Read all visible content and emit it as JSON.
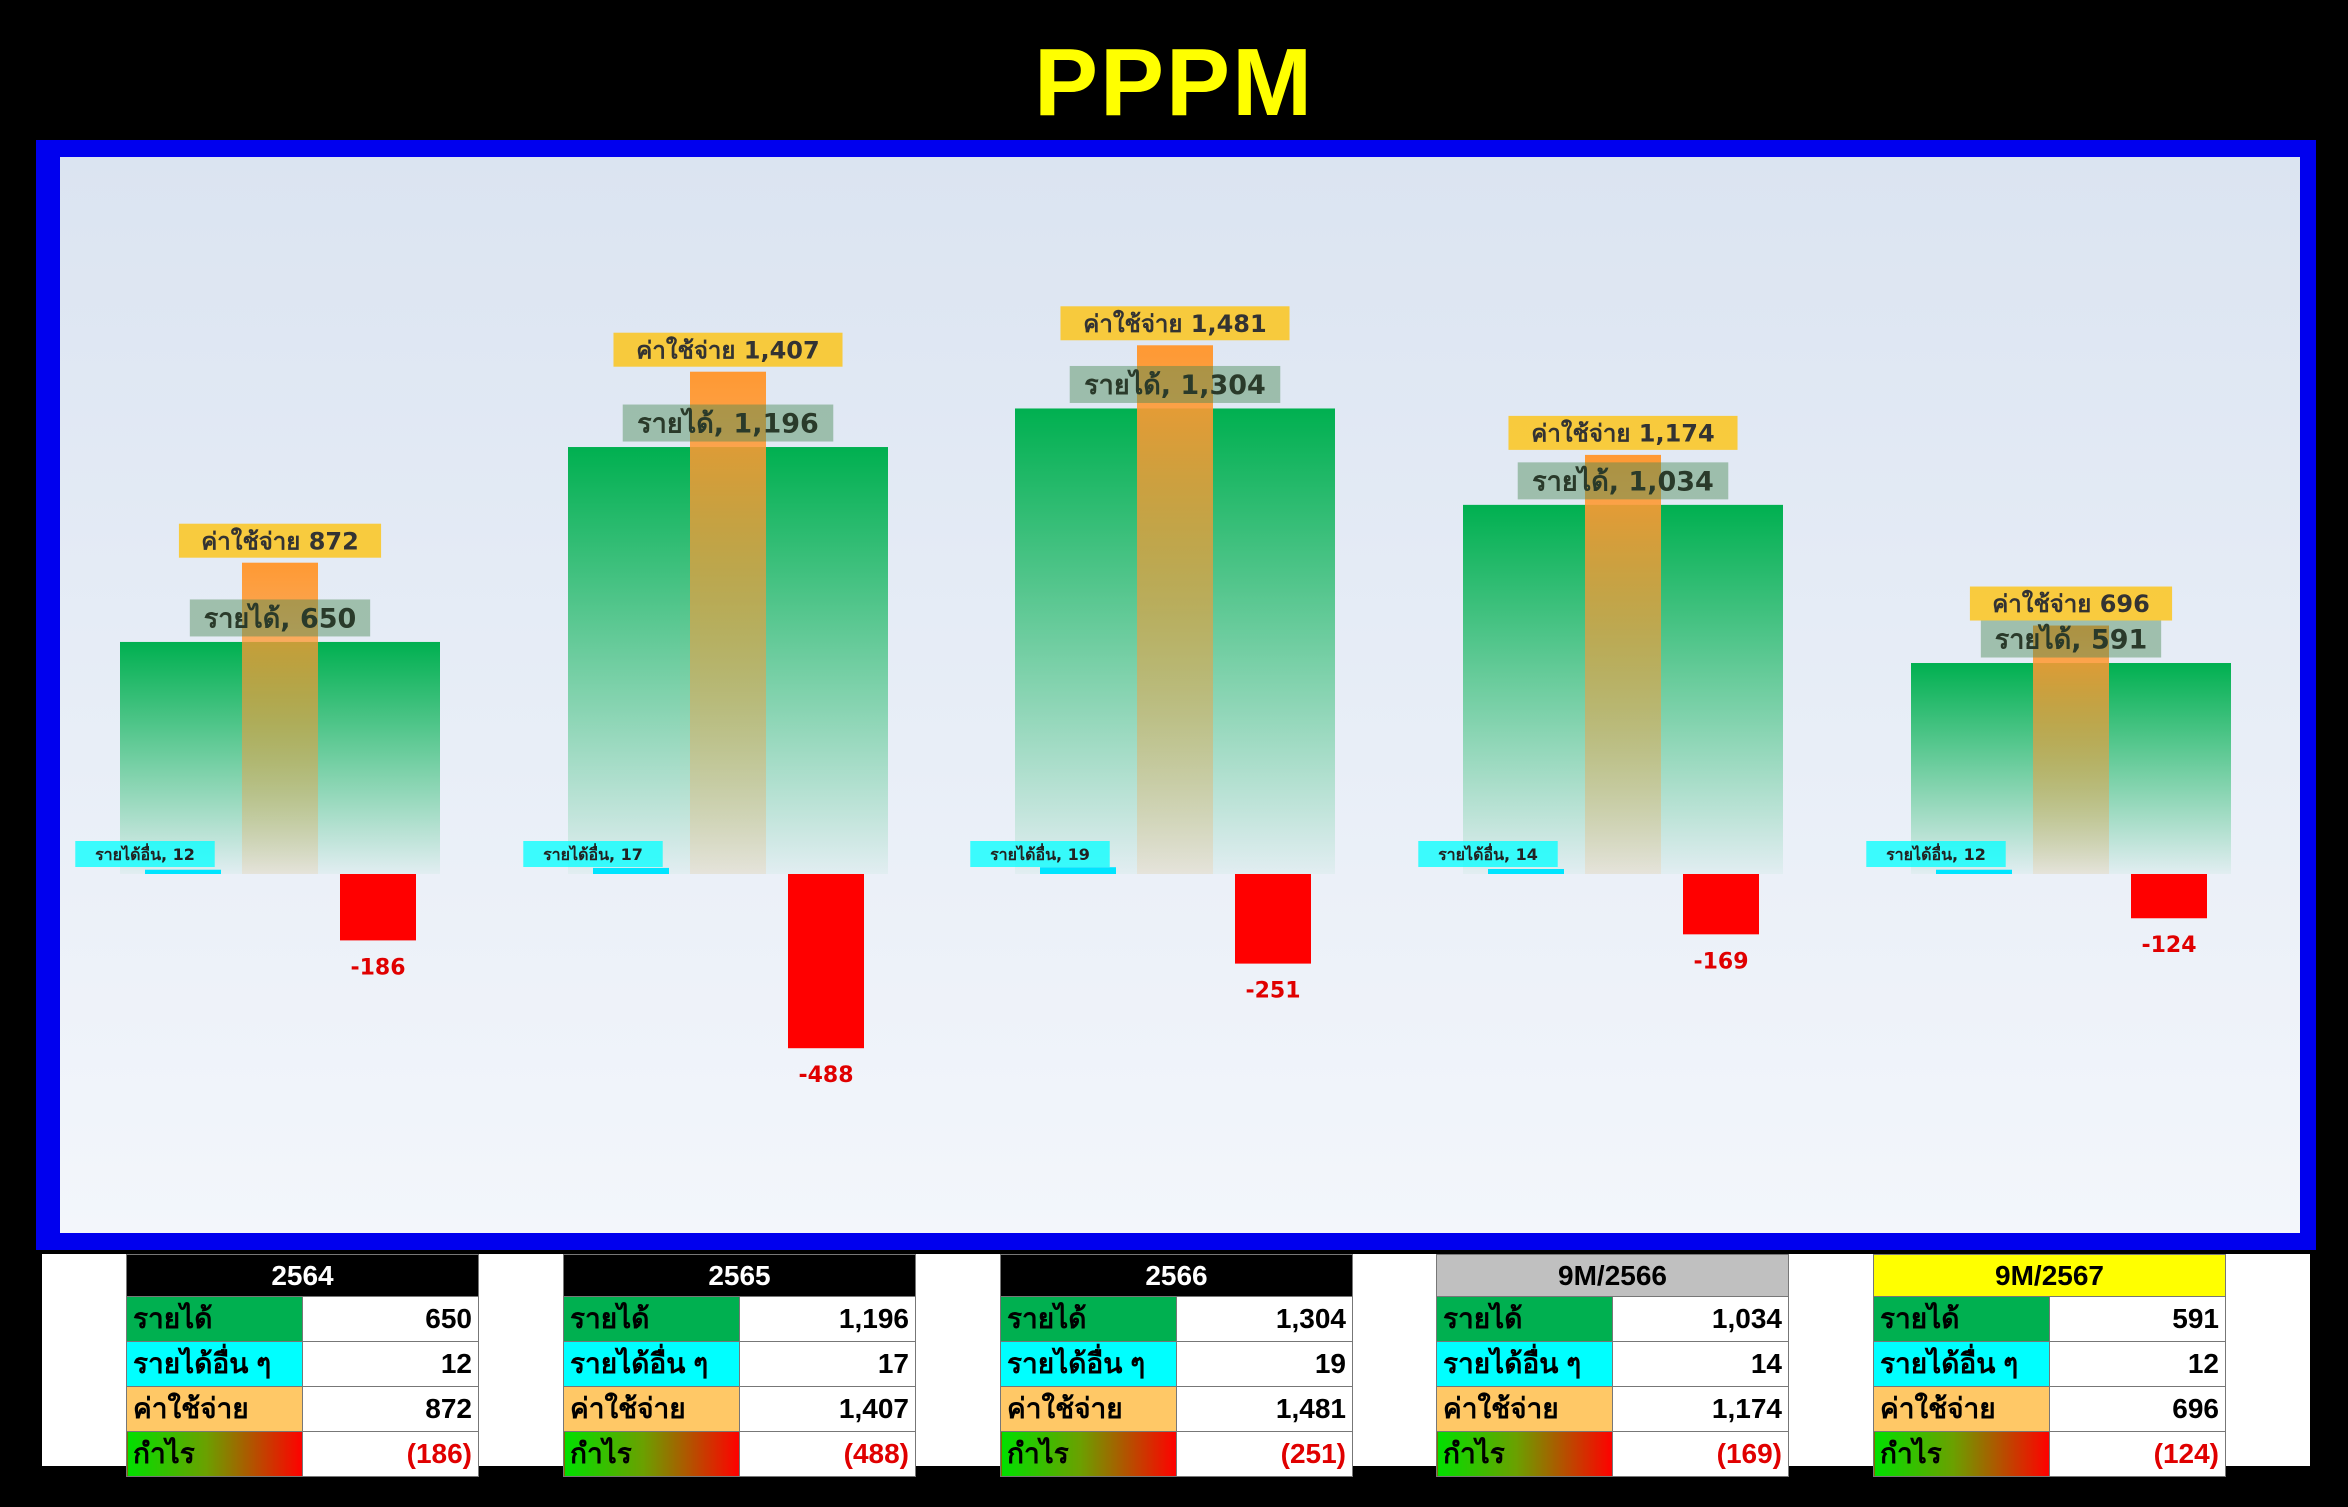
{
  "title": "PPPM",
  "colors": {
    "title": "#ffff00",
    "frame": "#0000ee",
    "revenue": "#00b050",
    "other_income": "#00ffff",
    "expense": "#ff9933",
    "expense_label": "#ffc000",
    "profit": "#ff0000"
  },
  "chart_data": {
    "type": "bar",
    "categories": [
      "2564",
      "2565",
      "2566",
      "9M/2566",
      "9M/2567"
    ],
    "series": [
      {
        "name": "รายได้",
        "values": [
          650,
          1196,
          1304,
          1034,
          591
        ]
      },
      {
        "name": "รายได้อื่น",
        "values": [
          12,
          17,
          19,
          14,
          12
        ]
      },
      {
        "name": "ค่าใช้จ่าย",
        "values": [
          872,
          1407,
          1481,
          1174,
          696
        ]
      },
      {
        "name": "กำไร",
        "values": [
          -186,
          -488,
          -251,
          -169,
          -124
        ]
      }
    ],
    "data_labels": {
      "revenue": [
        "รายได้, 650",
        "รายได้, 1,196",
        "รายได้, 1,304",
        "รายได้, 1,034",
        "รายได้, 591"
      ],
      "other_income": [
        "รายได้อื่น, 12",
        "รายได้อื่น, 17",
        "รายได้อื่น, 19",
        "รายได้อื่น, 14",
        "รายได้อื่น, 12"
      ],
      "expense": [
        "ค่าใช้จ่าย 872",
        "ค่าใช้จ่าย 1,407",
        "ค่าใช้จ่าย 1,481",
        "ค่าใช้จ่าย 1,174",
        "ค่าใช้จ่าย 696"
      ],
      "profit": [
        "-186",
        "-488",
        "-251",
        "-169",
        "-124"
      ]
    },
    "ylim": [
      -560,
      1850
    ],
    "grid": false,
    "legend": "none"
  },
  "tables": [
    {
      "year": "2564",
      "header_bg": "#000000",
      "header_fg": "#ffffff",
      "rows": [
        {
          "label": "รายได้",
          "value": "650"
        },
        {
          "label": "รายได้อื่น ๆ",
          "value": "12"
        },
        {
          "label": "ค่าใช้จ่าย",
          "value": "872"
        },
        {
          "label": "กำไร",
          "value": "(186)"
        }
      ]
    },
    {
      "year": "2565",
      "header_bg": "#000000",
      "header_fg": "#ffffff",
      "rows": [
        {
          "label": "รายได้",
          "value": "1,196"
        },
        {
          "label": "รายได้อื่น ๆ",
          "value": "17"
        },
        {
          "label": "ค่าใช้จ่าย",
          "value": "1,407"
        },
        {
          "label": "กำไร",
          "value": "(488)"
        }
      ]
    },
    {
      "year": "2566",
      "header_bg": "#000000",
      "header_fg": "#ffffff",
      "rows": [
        {
          "label": "รายได้",
          "value": "1,304"
        },
        {
          "label": "รายได้อื่น ๆ",
          "value": "19"
        },
        {
          "label": "ค่าใช้จ่าย",
          "value": "1,481"
        },
        {
          "label": "กำไร",
          "value": "(251)"
        }
      ]
    },
    {
      "year": "9M/2566",
      "header_bg": "#c0c0c0",
      "header_fg": "#000000",
      "rows": [
        {
          "label": "รายได้",
          "value": "1,034"
        },
        {
          "label": "รายได้อื่น ๆ",
          "value": "14"
        },
        {
          "label": "ค่าใช้จ่าย",
          "value": "1,174"
        },
        {
          "label": "กำไร",
          "value": "(169)"
        }
      ]
    },
    {
      "year": "9M/2567",
      "header_bg": "#ffff00",
      "header_fg": "#000000",
      "rows": [
        {
          "label": "รายได้",
          "value": "591"
        },
        {
          "label": "รายได้อื่น ๆ",
          "value": "12"
        },
        {
          "label": "ค่าใช้จ่าย",
          "value": "696"
        },
        {
          "label": "กำไร",
          "value": "(124)"
        }
      ]
    }
  ]
}
